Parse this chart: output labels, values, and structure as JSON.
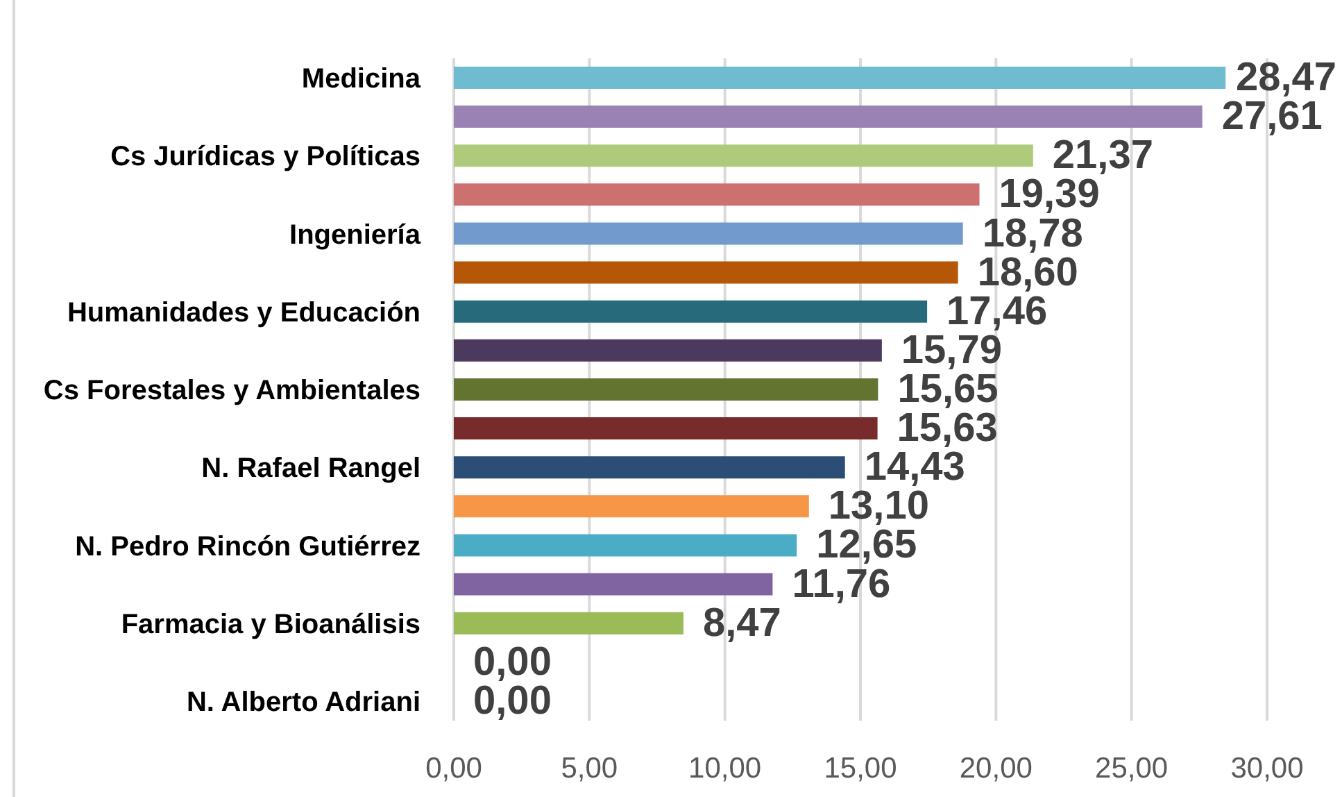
{
  "chart_data": {
    "type": "bar",
    "orientation": "horizontal",
    "categories": [
      "Medicina",
      null,
      "Cs Jurídicas y Políticas",
      null,
      "Ingeniería",
      null,
      "Humanidades y Educación",
      null,
      "Cs Forestales y Ambientales",
      null,
      "N. Rafael Rangel",
      null,
      "N. Pedro Rincón Gutiérrez",
      null,
      "Farmacia y Bioanálisis",
      null,
      "N. Alberto Adriani"
    ],
    "values": [
      28.47,
      27.61,
      21.37,
      19.39,
      18.78,
      18.6,
      17.46,
      15.79,
      15.65,
      15.63,
      14.43,
      13.1,
      12.65,
      11.76,
      8.47,
      0,
      0
    ],
    "colors": [
      "#6fbcd1",
      "#9b82b4",
      "#afca7a",
      "#cc7170",
      "#729acc",
      "#b65708",
      "#276a7c",
      "#4c3a5e",
      "#627430",
      "#772c2b",
      "#2c4d75",
      "#f79646",
      "#4bacc6",
      "#8064a2",
      "#9bbb59",
      "#c0504d",
      "#4f81bd"
    ],
    "value_labels": [
      "28,47",
      "27,61",
      "21,37",
      "19,39",
      "18,78",
      "18,60",
      "17,46",
      "15,79",
      "15,65",
      "15,63",
      "14,43",
      "13,10",
      "12,65",
      "11,76",
      "8,47",
      "0,00",
      "0,00"
    ],
    "xlim": [
      0,
      30
    ],
    "xticks": [
      {
        "value": 0,
        "label": "0,00"
      },
      {
        "value": 5,
        "label": "5,00"
      },
      {
        "value": 10,
        "label": "10,00"
      },
      {
        "value": 15,
        "label": "15,00"
      },
      {
        "value": 20,
        "label": "20,00"
      },
      {
        "value": 25,
        "label": "25,00"
      },
      {
        "value": 30,
        "label": "30,00"
      }
    ],
    "grid": "x"
  }
}
